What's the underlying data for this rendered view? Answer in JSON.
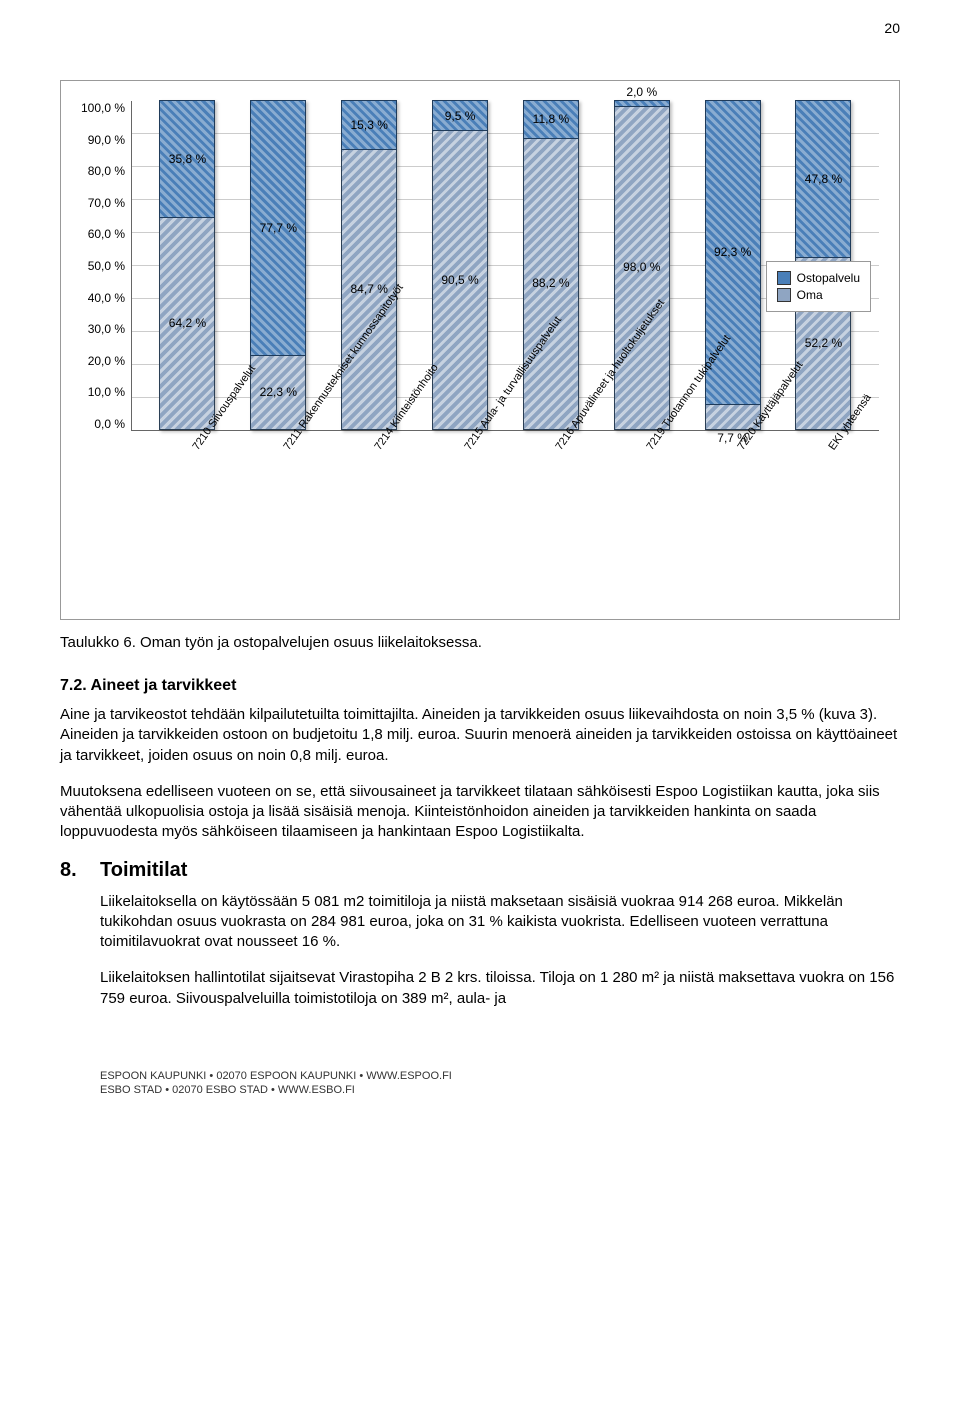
{
  "page_number": "20",
  "chart": {
    "type": "stacked-bar",
    "ylim": [
      0,
      100
    ],
    "ytick_step": 10,
    "y_labels": [
      "100,0 %",
      "90,0 %",
      "80,0 %",
      "70,0 %",
      "60,0 %",
      "50,0 %",
      "40,0 %",
      "30,0 %",
      "20,0 %",
      "10,0 %",
      "0,0 %"
    ],
    "legend": {
      "ostopalvelu": "Ostopalvelu",
      "oma": "Oma"
    },
    "colors": {
      "ostopalvelu": "#4a7fb8",
      "oma": "#8fa5c2",
      "grid": "#cccccc",
      "border": "#666666",
      "background": "#ffffff"
    },
    "bars": [
      {
        "label": "7210 Siivouspalvelut",
        "top_label": "35,8 %",
        "bot_label": "64,2 %",
        "top": 35.8,
        "bot": 64.2
      },
      {
        "label": "7211 Rakennustekniset kunnossapitotyöt",
        "top_label": "77,7 %",
        "bot_label": "22,3 %",
        "top": 77.7,
        "bot": 22.3
      },
      {
        "label": "7214 Kiinteistönhoito",
        "top_label": "15,3 %",
        "bot_label": "84,7 %",
        "top": 15.3,
        "bot": 84.7
      },
      {
        "label": "7215 Aula- ja turvallisuuspalvelut",
        "top_label": "9,5 %",
        "bot_label": "90,5 %",
        "top": 9.5,
        "bot": 90.5
      },
      {
        "label": "7216 Apuvälineet ja huoltokuljetukset",
        "top_label": "11,8 %",
        "bot_label": "88,2 %",
        "top": 11.8,
        "bot": 88.2
      },
      {
        "label": "7219 Tuotannon tukipalvelut",
        "top_label": "2,0 %",
        "bot_label": "98,0 %",
        "top": 2.0,
        "bot": 98.0
      },
      {
        "label": "7220 Käyttäjäpalvelut",
        "top_label": "92,3 %",
        "bot_label": "7,7 %",
        "top": 92.3,
        "bot": 7.7
      },
      {
        "label": "EKI yhteensä",
        "top_label": "47,8 %",
        "bot_label": "52,2 %",
        "top": 47.8,
        "bot": 52.2
      }
    ]
  },
  "caption": "Taulukko 6. Oman työn ja ostopalvelujen osuus liikelaitoksessa.",
  "section72": {
    "heading": "7.2. Aineet ja tarvikkeet",
    "p1": "Aine ja tarvikeostot tehdään kilpailutetuilta toimittajilta. Aineiden ja tarvikkeiden osuus liikevaihdosta on noin 3,5 % (kuva 3). Aineiden ja tarvikkeiden ostoon on budjetoitu 1,8 milj. euroa. Suurin menoerä aineiden ja tarvikkeiden ostoissa on käyttöaineet ja tarvikkeet, joiden osuus on noin 0,8 milj. euroa.",
    "p2": "Muutoksena edelliseen vuoteen on se, että siivousaineet ja tarvikkeet tilataan sähköisesti Espoo Logistiikan kautta, joka siis vähentää ulkopuolisia ostoja ja lisää sisäisiä menoja. Kiinteistönhoidon aineiden ja tarvikkeiden hankinta on saada loppuvuodesta myös sähköiseen tilaamiseen ja hankintaan Espoo Logistiikalta."
  },
  "section8": {
    "num": "8.",
    "heading": "Toimitilat",
    "p1": "Liikelaitoksella on käytössään 5 081 m2 toimitiloja ja niistä maksetaan sisäisiä vuokraa 914 268 euroa. Mikkelän tukikohdan osuus vuokrasta on 284 981 euroa, joka on 31 % kaikista vuokrista. Edelliseen vuoteen verrattuna toimitilavuokrat ovat nousseet 16 %.",
    "p2": "Liikelaitoksen hallintotilat sijaitsevat Virastopiha 2 B 2 krs. tiloissa. Tiloja on 1 280 m² ja niistä maksettava vuokra on 156 759 euroa. Siivouspalveluilla toimistotiloja on 389 m², aula- ja"
  },
  "footer": {
    "line1": "ESPOON KAUPUNKI • 02070 ESPOON KAUPUNKI • WWW.ESPOO.FI",
    "line2": "ESBO STAD • 02070 ESBO STAD • WWW.ESBO.FI"
  }
}
